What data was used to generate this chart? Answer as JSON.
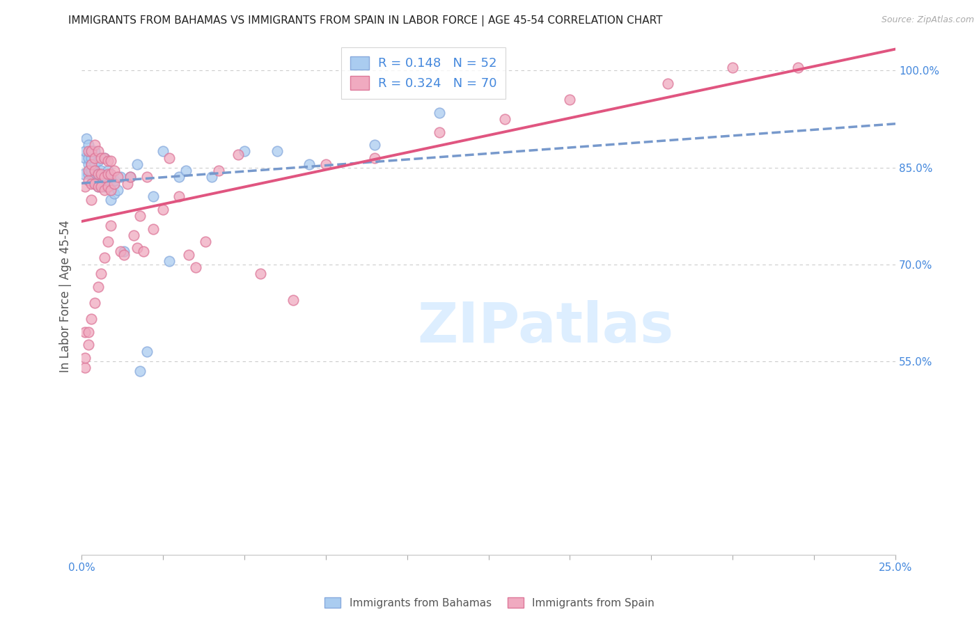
{
  "title": "IMMIGRANTS FROM BAHAMAS VS IMMIGRANTS FROM SPAIN IN LABOR FORCE | AGE 45-54 CORRELATION CHART",
  "source": "Source: ZipAtlas.com",
  "ylabel": "In Labor Force | Age 45-54",
  "xlim": [
    0.0,
    0.25
  ],
  "ylim": [
    0.25,
    1.05
  ],
  "yticks": [
    0.55,
    0.7,
    0.85,
    1.0
  ],
  "ytick_labels": [
    "55.0%",
    "70.0%",
    "85.0%",
    "100.0%"
  ],
  "xticks": [
    0.0,
    0.025,
    0.05,
    0.075,
    0.1,
    0.125,
    0.15,
    0.175,
    0.2,
    0.225,
    0.25
  ],
  "xtick_labels_left": "0.0%",
  "xtick_labels_right": "25.0%",
  "bahamas_R": 0.148,
  "bahamas_N": 52,
  "spain_R": 0.324,
  "spain_N": 70,
  "bahamas_color": "#aaccf0",
  "spain_color": "#f0aac0",
  "bahamas_edge_color": "#88aadd",
  "spain_edge_color": "#dd7799",
  "bahamas_line_color": "#7799cc",
  "spain_line_color": "#e05580",
  "tick_label_color": "#4488dd",
  "watermark_color": "#ddeeff",
  "watermark": "ZIPatlas",
  "bahamas_x": [
    0.0005,
    0.001,
    0.001,
    0.0015,
    0.002,
    0.002,
    0.002,
    0.002,
    0.003,
    0.003,
    0.003,
    0.003,
    0.003,
    0.004,
    0.004,
    0.004,
    0.004,
    0.004,
    0.005,
    0.005,
    0.005,
    0.005,
    0.006,
    0.006,
    0.006,
    0.007,
    0.007,
    0.007,
    0.008,
    0.008,
    0.009,
    0.009,
    0.01,
    0.01,
    0.011,
    0.012,
    0.013,
    0.015,
    0.017,
    0.018,
    0.02,
    0.022,
    0.025,
    0.027,
    0.03,
    0.032,
    0.04,
    0.05,
    0.06,
    0.07,
    0.09,
    0.11
  ],
  "bahamas_y": [
    0.84,
    0.865,
    0.875,
    0.895,
    0.84,
    0.855,
    0.865,
    0.885,
    0.84,
    0.845,
    0.855,
    0.865,
    0.875,
    0.825,
    0.835,
    0.845,
    0.855,
    0.875,
    0.82,
    0.83,
    0.84,
    0.86,
    0.82,
    0.835,
    0.845,
    0.82,
    0.835,
    0.865,
    0.825,
    0.845,
    0.8,
    0.83,
    0.81,
    0.83,
    0.815,
    0.835,
    0.72,
    0.835,
    0.855,
    0.535,
    0.565,
    0.805,
    0.875,
    0.705,
    0.835,
    0.845,
    0.835,
    0.875,
    0.875,
    0.855,
    0.885,
    0.935
  ],
  "spain_x": [
    0.001,
    0.001,
    0.002,
    0.002,
    0.002,
    0.003,
    0.003,
    0.003,
    0.003,
    0.004,
    0.004,
    0.004,
    0.004,
    0.005,
    0.005,
    0.005,
    0.006,
    0.006,
    0.006,
    0.007,
    0.007,
    0.007,
    0.008,
    0.008,
    0.008,
    0.009,
    0.009,
    0.009,
    0.01,
    0.01,
    0.011,
    0.012,
    0.013,
    0.014,
    0.015,
    0.016,
    0.017,
    0.018,
    0.019,
    0.02,
    0.022,
    0.025,
    0.027,
    0.03,
    0.033,
    0.035,
    0.038,
    0.042,
    0.048,
    0.055,
    0.065,
    0.075,
    0.09,
    0.11,
    0.13,
    0.15,
    0.18,
    0.2,
    0.001,
    0.001,
    0.002,
    0.002,
    0.003,
    0.004,
    0.005,
    0.006,
    0.007,
    0.008,
    0.009,
    0.22
  ],
  "spain_y": [
    0.595,
    0.82,
    0.83,
    0.845,
    0.875,
    0.8,
    0.825,
    0.855,
    0.875,
    0.825,
    0.845,
    0.865,
    0.885,
    0.82,
    0.84,
    0.875,
    0.82,
    0.84,
    0.865,
    0.815,
    0.835,
    0.865,
    0.82,
    0.84,
    0.86,
    0.815,
    0.84,
    0.86,
    0.825,
    0.845,
    0.835,
    0.72,
    0.715,
    0.825,
    0.835,
    0.745,
    0.725,
    0.775,
    0.72,
    0.835,
    0.755,
    0.785,
    0.865,
    0.805,
    0.715,
    0.695,
    0.735,
    0.845,
    0.87,
    0.685,
    0.645,
    0.855,
    0.865,
    0.905,
    0.925,
    0.955,
    0.98,
    1.005,
    0.54,
    0.555,
    0.575,
    0.595,
    0.615,
    0.64,
    0.665,
    0.685,
    0.71,
    0.735,
    0.76,
    1.005
  ]
}
